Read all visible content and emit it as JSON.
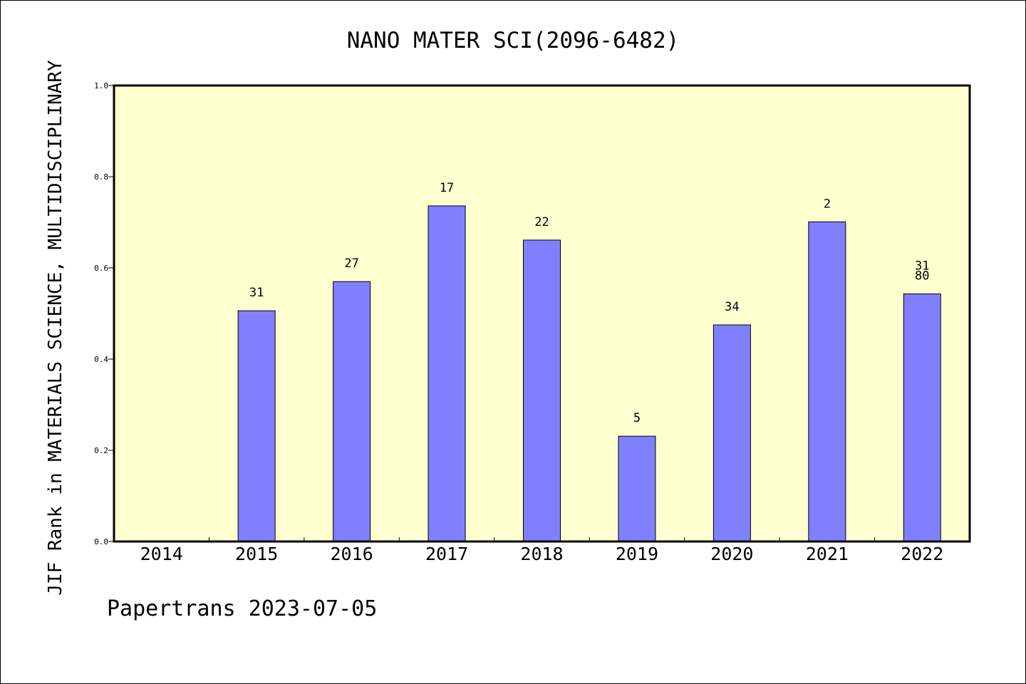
{
  "chart_data": {
    "type": "bar",
    "title": "NANO MATER SCI(2096-6482)",
    "ylabel": "JIF Rank in MATERIALS SCIENCE, MULTIDISCIPLINARY",
    "xlabel": "",
    "footer": "Papertrans 2023-07-05",
    "ylim": [
      0,
      1.0
    ],
    "yticks": [
      "0.0",
      "0.2",
      "0.4",
      "0.6",
      "0.8",
      "1.0"
    ],
    "ytick_values": [
      0,
      0.2,
      0.4,
      0.6,
      0.8,
      1.0
    ],
    "categories": [
      "2014",
      "2015",
      "2016",
      "2017",
      "2018",
      "2019",
      "2020",
      "2021",
      "2022"
    ],
    "values": [
      null,
      0.506,
      0.57,
      0.736,
      0.661,
      0.231,
      0.475,
      0.701,
      0.543
    ],
    "data_labels": [
      null,
      "31",
      "27",
      "17",
      "22",
      "5",
      "34",
      "2",
      "31\n80"
    ],
    "grid": false,
    "legend": "none",
    "colors": {
      "plot_background": "#ffffd0",
      "bar_fill": "#8080ff",
      "bar_stroke": "#000000",
      "axis": "#000000"
    }
  }
}
